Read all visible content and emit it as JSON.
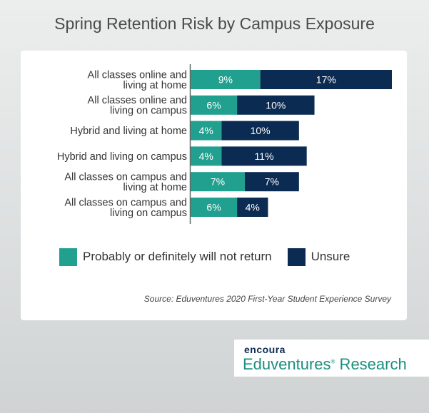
{
  "title": "Spring Retention Risk by Campus Exposure",
  "colors": {
    "not_return": "#21a08f",
    "unsure": "#0b2b52",
    "axis": "#666666"
  },
  "chart_data": {
    "type": "bar",
    "orientation": "horizontal",
    "stacked": true,
    "title": "Spring Retention Risk by Campus Exposure",
    "categories": [
      [
        "All classes online and",
        "living at home"
      ],
      [
        "All classes online and",
        "living on campus"
      ],
      [
        "Hybrid and living at home"
      ],
      [
        "Hybrid and living on campus"
      ],
      [
        "All classes on campus and",
        "living at home"
      ],
      [
        "All classes on campus and",
        "living on campus"
      ]
    ],
    "series": [
      {
        "name": "Probably or definitely will not return",
        "values": [
          9,
          6,
          4,
          4,
          7,
          6
        ],
        "color": "#21a08f"
      },
      {
        "name": "Unsure",
        "values": [
          17,
          10,
          10,
          11,
          7,
          4
        ],
        "color": "#0b2b52"
      }
    ],
    "value_suffix": "%",
    "xlim": [
      0,
      26
    ],
    "grid": false,
    "legend_position": "bottom"
  },
  "legend": [
    {
      "label": "Probably or definitely will not return",
      "color": "#21a08f"
    },
    {
      "label": "Unsure",
      "color": "#0b2b52"
    }
  ],
  "source": "Source: Eduventures 2020 First-Year Student Experience Survey",
  "logo": {
    "brand": "encoura",
    "name": "Eduventures",
    "registered_mark": "®",
    "suffix": " Research"
  }
}
